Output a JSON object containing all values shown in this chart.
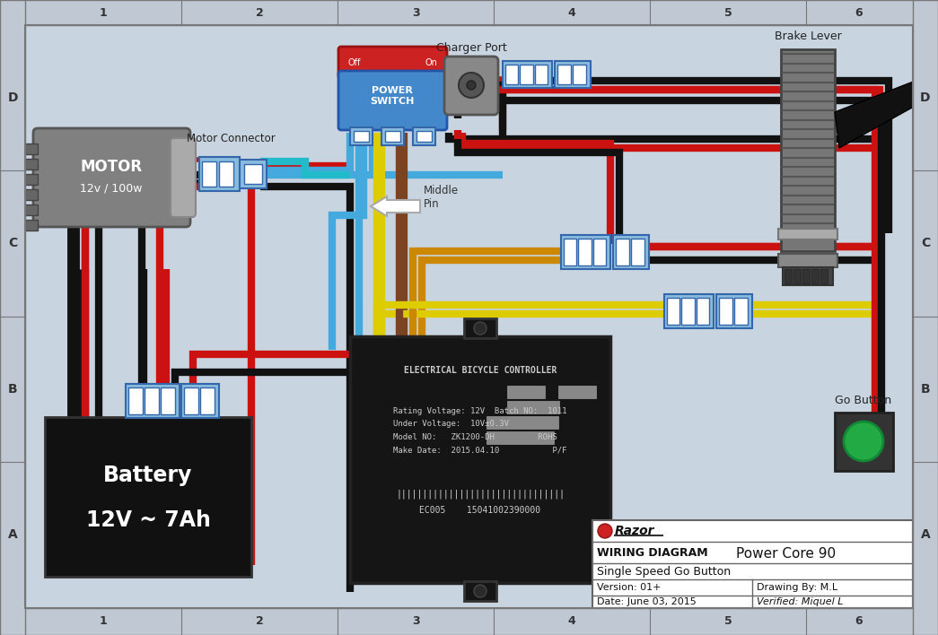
{
  "bg_color": "#c8d4e0",
  "diagram_title": "WIRING DIAGRAM",
  "product_name": "Power Core 90",
  "subtitle": "Single Speed Go Button",
  "version": "Version: 01+",
  "date": "Date: June 03, 2015",
  "drawing_by": "Drawing By: M.L",
  "verified": "Verified: Miquel L",
  "motor_label": "MOTOR",
  "motor_spec": "12v / 100w",
  "battery_label": "Battery",
  "battery_spec": "12V ~ 7Ah",
  "motor_connector_label": "Motor Connector",
  "charger_port_label": "Charger Port",
  "brake_lever_label": "Brake Lever",
  "go_button_label": "Go Button",
  "middle_pin_label": "Middle\nPin",
  "wire_red": "#cc1111",
  "wire_black": "#111111",
  "wire_blue": "#44aadd",
  "wire_yellow": "#ddcc00",
  "wire_brown": "#7a4422",
  "wire_orange": "#cc8800",
  "wire_cyan": "#22bbcc",
  "connector_face": "#88bbdd",
  "connector_edge": "#3366aa"
}
